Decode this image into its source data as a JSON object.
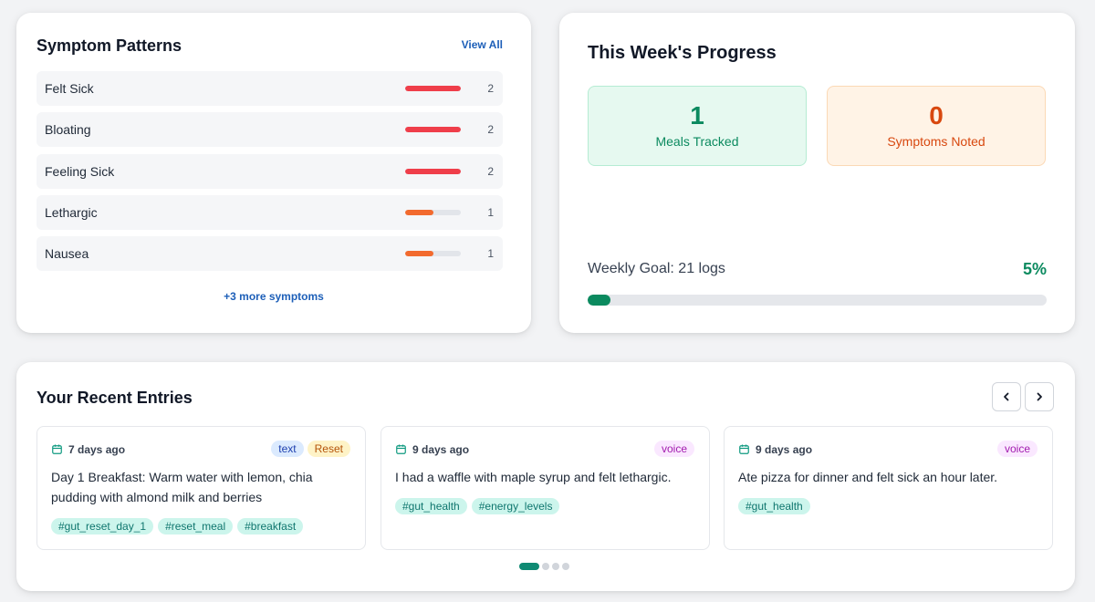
{
  "symptoms": {
    "title": "Symptom Patterns",
    "view_all": "View All",
    "items": [
      {
        "name": "Felt Sick",
        "count": "2",
        "level": 1.0,
        "color": "#ef3e4a"
      },
      {
        "name": "Bloating",
        "count": "2",
        "level": 1.0,
        "color": "#ef3e4a"
      },
      {
        "name": "Feeling Sick",
        "count": "2",
        "level": 1.0,
        "color": "#ef3e4a"
      },
      {
        "name": "Lethargic",
        "count": "1",
        "level": 0.5,
        "color": "#f26a2e"
      },
      {
        "name": "Nausea",
        "count": "1",
        "level": 0.5,
        "color": "#f26a2e"
      }
    ],
    "more": "+3 more symptoms"
  },
  "progress": {
    "title": "This Week's Progress",
    "meals_value": "1",
    "meals_label": "Meals Tracked",
    "symptoms_value": "0",
    "symptoms_label": "Symptoms Noted",
    "goal_label": "Weekly Goal: 21 logs",
    "goal_percent_text": "5%",
    "goal_fraction": 0.05
  },
  "entries": {
    "title": "Your Recent Entries",
    "prev_icon": "chevron-left-icon",
    "next_icon": "chevron-right-icon",
    "items": [
      {
        "date": "7 days ago",
        "badges": [
          "text",
          "Reset"
        ],
        "body": "Day 1 Breakfast: Warm water with lemon, chia pudding with almond milk and berries",
        "tags": [
          "#gut_reset_day_1",
          "#reset_meal",
          "#breakfast"
        ]
      },
      {
        "date": "9 days ago",
        "badges": [
          "voice"
        ],
        "body": "I had a waffle with maple syrup and felt lethargic.",
        "tags": [
          "#gut_health",
          "#energy_levels"
        ]
      },
      {
        "date": "9 days ago",
        "badges": [
          "voice"
        ],
        "body": "Ate pizza for dinner and felt sick an hour later.",
        "tags": [
          "#gut_health"
        ]
      }
    ],
    "pagination": {
      "pages": 4,
      "active": 0
    }
  }
}
